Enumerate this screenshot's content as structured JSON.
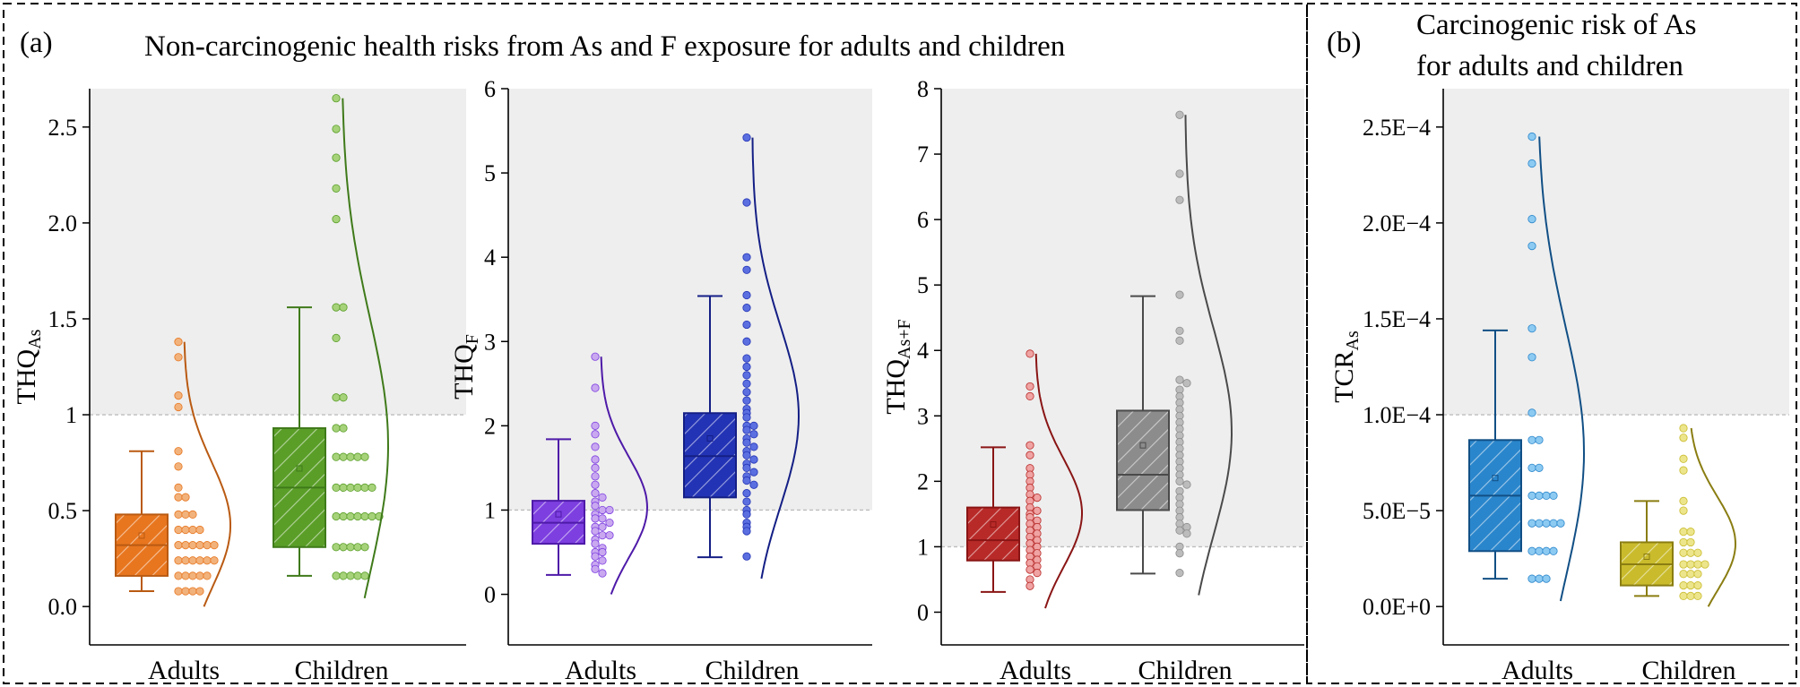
{
  "panel_a": {
    "label": "(a)",
    "title": "Non-carcinogenic health risks from As and F exposure for adults and children"
  },
  "panel_b": {
    "label": "(b)",
    "title_line1": "Carcinogenic risk of As",
    "title_line2": "for adults and children"
  },
  "chart_data": [
    {
      "type": "box",
      "id": "thq_as",
      "ylabel_main": "THQ",
      "ylabel_sub": "As",
      "ylim": [
        -0.2,
        2.7
      ],
      "yticks": [
        0.0,
        0.5,
        1.0,
        1.5,
        2.0,
        2.5
      ],
      "ytick_labels": [
        "0.0",
        "0.5",
        "1",
        "1.5",
        "2.0",
        "2.5"
      ],
      "threshold": 1.0,
      "categories": [
        "Adults",
        "Children"
      ],
      "groups": [
        {
          "name": "Adults",
          "color": "#e8761f",
          "dark": "#b95a12",
          "light": "#f2b27c",
          "whisker_low": 0.08,
          "q1": 0.16,
          "median": 0.32,
          "q3": 0.48,
          "whisker_high": 0.81,
          "mean": 0.37,
          "points": [
            1.38,
            1.3,
            1.1,
            1.04,
            0.81,
            0.73,
            0.62,
            0.57,
            0.57,
            0.48,
            0.48,
            0.48,
            0.4,
            0.4,
            0.4,
            0.4,
            0.32,
            0.32,
            0.32,
            0.32,
            0.32,
            0.32,
            0.24,
            0.24,
            0.24,
            0.24,
            0.24,
            0.24,
            0.16,
            0.16,
            0.16,
            0.16,
            0.16,
            0.08,
            0.08,
            0.08,
            0.08
          ]
        },
        {
          "name": "Children",
          "color": "#5a9e28",
          "dark": "#3f7a1a",
          "light": "#a6d27a",
          "whisker_low": 0.16,
          "q1": 0.31,
          "median": 0.62,
          "q3": 0.93,
          "whisker_high": 1.56,
          "mean": 0.72,
          "points": [
            2.65,
            2.49,
            2.34,
            2.18,
            2.02,
            1.56,
            1.56,
            1.4,
            1.09,
            1.09,
            0.93,
            0.93,
            0.78,
            0.78,
            0.78,
            0.78,
            0.78,
            0.62,
            0.62,
            0.62,
            0.62,
            0.62,
            0.62,
            0.47,
            0.47,
            0.47,
            0.47,
            0.47,
            0.47,
            0.47,
            0.31,
            0.31,
            0.31,
            0.31,
            0.31,
            0.16,
            0.16,
            0.16,
            0.16,
            0.16
          ]
        }
      ]
    },
    {
      "type": "box",
      "id": "thq_f",
      "ylabel_main": "THQ",
      "ylabel_sub": "F",
      "ylim": [
        -0.6,
        6.0
      ],
      "yticks": [
        0,
        1,
        2,
        3,
        4,
        5,
        6
      ],
      "ytick_labels": [
        "0",
        "1",
        "2",
        "3",
        "4",
        "5",
        "6"
      ],
      "threshold": 1.0,
      "categories": [
        "Adults",
        "Children"
      ],
      "groups": [
        {
          "name": "Adults",
          "color": "#7d3fe0",
          "dark": "#4e1aa8",
          "light": "#c9a8f0",
          "whisker_low": 0.23,
          "q1": 0.6,
          "median": 0.85,
          "q3": 1.11,
          "whisker_high": 1.84,
          "mean": 0.95,
          "points": [
            2.82,
            2.45,
            2.0,
            1.9,
            1.75,
            1.6,
            1.5,
            1.4,
            1.3,
            1.2,
            1.15,
            1.1,
            1.05,
            1.0,
            1.0,
            0.95,
            0.9,
            0.9,
            0.85,
            0.8,
            0.8,
            0.75,
            0.7,
            0.7,
            0.65,
            0.6,
            0.55,
            0.5,
            0.5,
            0.45,
            0.4,
            0.35,
            0.3,
            0.25
          ]
        },
        {
          "name": "Children",
          "color": "#2333b5",
          "dark": "#141f85",
          "light": "#5b6fe0",
          "whisker_low": 0.44,
          "q1": 1.15,
          "median": 1.64,
          "q3": 2.15,
          "whisker_high": 3.54,
          "mean": 1.85,
          "points": [
            5.42,
            4.65,
            4.0,
            3.85,
            3.55,
            3.4,
            3.2,
            3.0,
            2.8,
            2.7,
            2.6,
            2.5,
            2.4,
            2.3,
            2.2,
            2.15,
            2.1,
            2.0,
            2.0,
            1.95,
            1.9,
            1.85,
            1.8,
            1.75,
            1.7,
            1.65,
            1.6,
            1.55,
            1.5,
            1.45,
            1.4,
            1.35,
            1.3,
            1.2,
            1.1,
            1.0,
            0.95,
            0.85,
            0.8,
            0.75,
            0.45
          ]
        }
      ]
    },
    {
      "type": "box",
      "id": "thq_asf",
      "ylabel_main": "THQ",
      "ylabel_sub": "As+F",
      "ylim": [
        -0.5,
        8.0
      ],
      "yticks": [
        0,
        1,
        2,
        3,
        4,
        5,
        6,
        7,
        8
      ],
      "ytick_labels": [
        "0",
        "1",
        "2",
        "3",
        "4",
        "5",
        "6",
        "7",
        "8"
      ],
      "threshold": 1.0,
      "categories": [
        "Adults",
        "Children"
      ],
      "groups": [
        {
          "name": "Adults",
          "color": "#b82a28",
          "dark": "#8a1515",
          "light": "#f0a3a3",
          "whisker_low": 0.31,
          "q1": 0.79,
          "median": 1.1,
          "q3": 1.6,
          "whisker_high": 2.52,
          "mean": 1.34,
          "points": [
            3.95,
            3.45,
            3.3,
            2.55,
            2.4,
            2.2,
            2.1,
            2.0,
            1.9,
            1.8,
            1.75,
            1.7,
            1.6,
            1.55,
            1.5,
            1.45,
            1.4,
            1.35,
            1.3,
            1.25,
            1.2,
            1.15,
            1.1,
            1.05,
            1.0,
            0.95,
            0.9,
            0.85,
            0.8,
            0.75,
            0.7,
            0.65,
            0.6,
            0.5,
            0.4
          ]
        },
        {
          "name": "Children",
          "color": "#8c8c8c",
          "dark": "#4a4a4a",
          "light": "#bcbcbc",
          "whisker_low": 0.59,
          "q1": 1.56,
          "median": 2.1,
          "q3": 3.08,
          "whisker_high": 4.83,
          "mean": 2.55,
          "points": [
            7.6,
            6.7,
            6.3,
            4.85,
            4.3,
            4.15,
            3.55,
            3.5,
            3.4,
            3.3,
            3.2,
            3.1,
            3.0,
            2.9,
            2.8,
            2.7,
            2.6,
            2.5,
            2.4,
            2.3,
            2.2,
            2.1,
            2.0,
            1.95,
            1.85,
            1.75,
            1.65,
            1.55,
            1.45,
            1.35,
            1.3,
            1.25,
            1.2,
            1.0,
            0.9,
            0.6
          ]
        }
      ]
    },
    {
      "type": "box",
      "id": "tcr_as",
      "ylabel_main": "TCR",
      "ylabel_sub": "As",
      "ylim": [
        -2e-05,
        0.00027
      ],
      "yticks": [
        0,
        5e-05,
        0.0001,
        0.00015,
        0.0002,
        0.00025
      ],
      "ytick_labels": [
        "0.0E+0",
        "5.0E−5",
        "1.0E−4",
        "1.5E−4",
        "2.0E−4",
        "2.5E−4"
      ],
      "threshold": 0.0001,
      "categories": [
        "Adults",
        "Children"
      ],
      "groups": [
        {
          "name": "Adults",
          "color": "#2a86cc",
          "dark": "#114f85",
          "light": "#8ccaf2",
          "whisker_low": 1.45e-05,
          "q1": 2.89e-05,
          "median": 5.78e-05,
          "q3": 8.68e-05,
          "whisker_high": 0.000144,
          "mean": 6.7e-05,
          "points": [
            0.000245,
            0.000231,
            0.000202,
            0.000188,
            0.000145,
            0.00013,
            0.000101,
            8.68e-05,
            8.68e-05,
            7.23e-05,
            7.23e-05,
            5.78e-05,
            5.78e-05,
            5.78e-05,
            5.78e-05,
            4.34e-05,
            4.34e-05,
            4.34e-05,
            4.34e-05,
            4.34e-05,
            2.89e-05,
            2.89e-05,
            2.89e-05,
            2.89e-05,
            1.45e-05,
            1.45e-05,
            1.45e-05
          ]
        },
        {
          "name": "Children",
          "color": "#c9bb2c",
          "dark": "#8a7d12",
          "light": "#ece58c",
          "whisker_low": 5.5e-06,
          "q1": 1.1e-05,
          "median": 2.2e-05,
          "q3": 3.35e-05,
          "whisker_high": 5.5e-05,
          "mean": 2.6e-05,
          "points": [
            9.3e-05,
            8.8e-05,
            7.7e-05,
            7.1e-05,
            5.5e-05,
            5e-05,
            3.9e-05,
            3.9e-05,
            3.35e-05,
            3.35e-05,
            2.8e-05,
            2.8e-05,
            2.8e-05,
            2.2e-05,
            2.2e-05,
            2.2e-05,
            2.2e-05,
            1.7e-05,
            1.7e-05,
            1.7e-05,
            1.1e-05,
            1.1e-05,
            1.1e-05,
            5.5e-06,
            5.5e-06,
            5.5e-06
          ]
        }
      ]
    }
  ]
}
